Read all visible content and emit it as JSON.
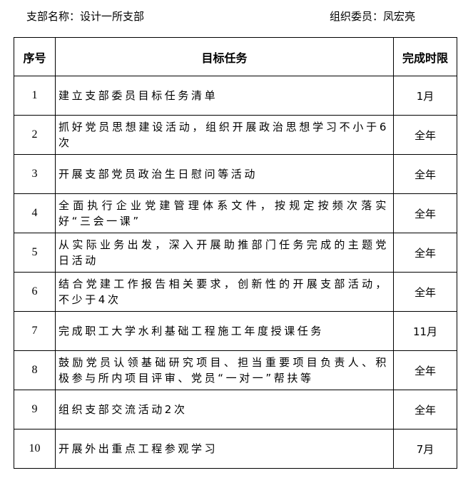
{
  "header": {
    "branch_name": "支部名称：设计一所支部",
    "committee_member": "组织委员：凤宏亮"
  },
  "table": {
    "columns": [
      "序号",
      "目标任务",
      "完成时限"
    ],
    "rows": [
      {
        "no": "1",
        "task": "建立支部委员目标任务清单",
        "deadline": "1月"
      },
      {
        "no": "2",
        "task": "抓好党员思想建设活动，组织开展政治思想学习不小于6次",
        "deadline": "全年"
      },
      {
        "no": "3",
        "task": "开展支部党员政治生日慰问等活动",
        "deadline": "全年"
      },
      {
        "no": "4",
        "task": "全面执行企业党建管理体系文件，按规定按频次落实好“三会一课”",
        "deadline": "全年"
      },
      {
        "no": "5",
        "task": "从实际业务出发，深入开展助推部门任务完成的主题党日活动",
        "deadline": "全年"
      },
      {
        "no": "6",
        "task": "结合党建工作报告相关要求，创新性的开展支部活动，不少于4次",
        "deadline": "全年"
      },
      {
        "no": "7",
        "task": "完成职工大学水利基础工程施工年度授课任务",
        "deadline": "11月"
      },
      {
        "no": "8",
        "task": "鼓励党员认领基础研究项目、担当重要项目负责人、积极参与所内项目评审、党员“一对一”帮扶等",
        "deadline": "全年"
      },
      {
        "no": "9",
        "task": "组织支部交流活动2次",
        "deadline": "全年"
      },
      {
        "no": "10",
        "task": "开展外出重点工程参观学习",
        "deadline": "7月"
      }
    ]
  }
}
